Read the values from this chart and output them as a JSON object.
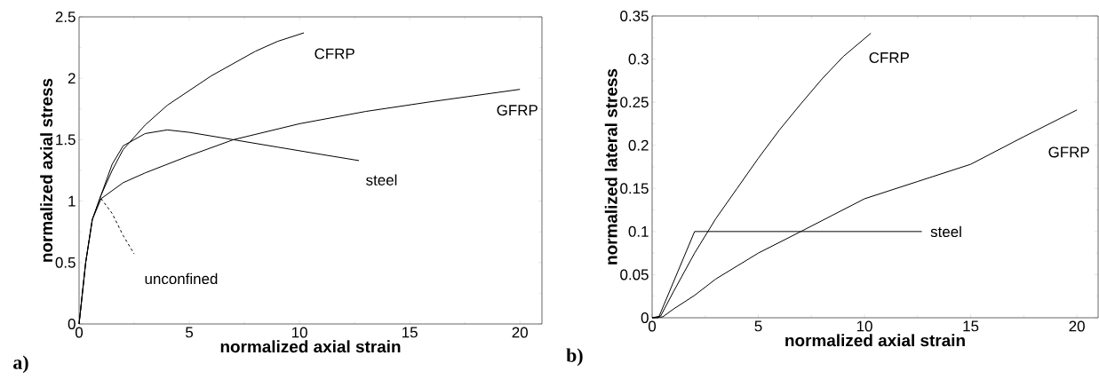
{
  "chart_data": [
    {
      "type": "line",
      "xlabel": "normalized axial strain",
      "ylabel": "normalized axial stress",
      "xlim": [
        0,
        21
      ],
      "ylim": [
        0,
        2.5
      ],
      "xticks": [
        0,
        5,
        10,
        15,
        20
      ],
      "yticks": [
        0,
        0.5,
        1,
        1.5,
        2,
        2.5
      ],
      "grid": false,
      "legend": false,
      "annotations": [
        "a)"
      ],
      "series": [
        {
          "name": "CFRP",
          "color": "#000000",
          "x": [
            0,
            0.3,
            0.6,
            1,
            1.5,
            2,
            3,
            4,
            5,
            6,
            7,
            8,
            9,
            10.2
          ],
          "values": [
            0,
            0.5,
            0.85,
            1.05,
            1.25,
            1.42,
            1.62,
            1.78,
            1.9,
            2.02,
            2.12,
            2.22,
            2.3,
            2.37
          ]
        },
        {
          "name": "GFRP",
          "color": "#000000",
          "x": [
            0,
            0.3,
            0.6,
            1,
            2,
            3,
            5,
            7,
            10,
            13,
            16,
            20
          ],
          "values": [
            0,
            0.5,
            0.85,
            1.02,
            1.15,
            1.23,
            1.37,
            1.5,
            1.63,
            1.73,
            1.81,
            1.91
          ]
        },
        {
          "name": "steel",
          "color": "#000000",
          "x": [
            0,
            0.3,
            0.6,
            1,
            1.5,
            2,
            3,
            4,
            5,
            7,
            9,
            11,
            12.7
          ],
          "values": [
            0,
            0.5,
            0.85,
            1.05,
            1.3,
            1.45,
            1.55,
            1.58,
            1.56,
            1.5,
            1.44,
            1.38,
            1.33
          ]
        },
        {
          "name": "unconfined",
          "color": "#000000",
          "line_style": "dashed",
          "x": [
            1,
            1.5,
            2,
            2.5
          ],
          "values": [
            1.02,
            0.9,
            0.72,
            0.57
          ]
        }
      ]
    },
    {
      "type": "line",
      "xlabel": "normalized axial strain",
      "ylabel": "normalized lateral stress",
      "xlim": [
        0,
        21
      ],
      "ylim": [
        0,
        0.35
      ],
      "xticks": [
        0,
        5,
        10,
        15,
        20
      ],
      "yticks": [
        0,
        0.05,
        0.1,
        0.15,
        0.2,
        0.25,
        0.3,
        0.35
      ],
      "grid": false,
      "legend": false,
      "annotations": [
        "b)"
      ],
      "series": [
        {
          "name": "CFRP",
          "color": "#000000",
          "x": [
            0,
            0.4,
            1,
            2,
            3,
            4,
            5,
            6,
            7,
            8,
            9,
            10.3
          ],
          "values": [
            0,
            0.002,
            0.03,
            0.075,
            0.115,
            0.15,
            0.185,
            0.218,
            0.248,
            0.277,
            0.303,
            0.33
          ]
        },
        {
          "name": "GFRP",
          "color": "#000000",
          "x": [
            0,
            0.5,
            1,
            2,
            3,
            5,
            7,
            10,
            12.5,
            15,
            17.5,
            20
          ],
          "values": [
            0,
            0.001,
            0.01,
            0.026,
            0.045,
            0.075,
            0.1,
            0.138,
            0.158,
            0.178,
            0.21,
            0.241
          ]
        },
        {
          "name": "steel",
          "color": "#000000",
          "x": [
            0,
            0.3,
            2,
            12.7
          ],
          "values": [
            0,
            0,
            0.1,
            0.1
          ]
        }
      ]
    }
  ]
}
